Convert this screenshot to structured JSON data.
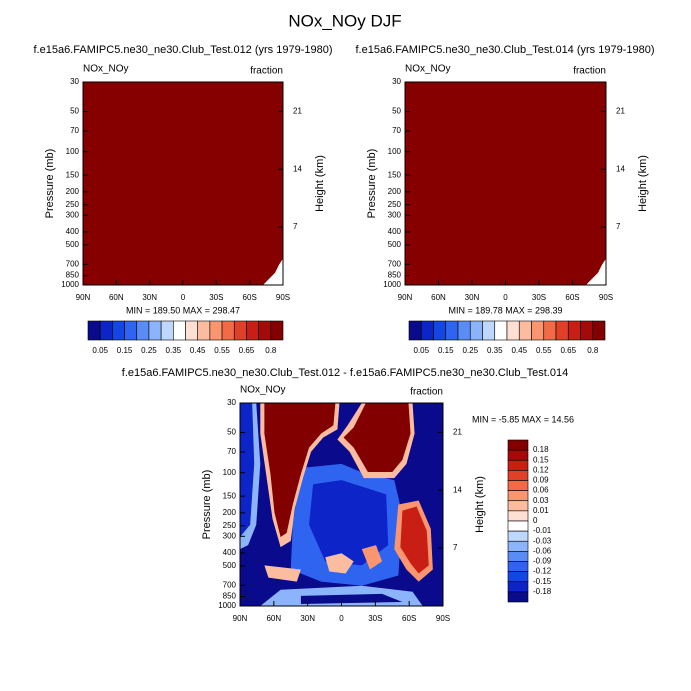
{
  "title": "NOx_NOy DJF",
  "chart_data": [
    {
      "type": "contour",
      "title": "f.e15a6.FAMIPC5.ne30_ne30.Club_Test.012 (yrs 1979-1980)",
      "left_label": "NOx_NOy",
      "right_label": "fraction",
      "ylabel": "Pressure (mb)",
      "y2label": "Height (km)",
      "stats": "MIN = 189.50  MAX = 298.47",
      "xlim": [
        90,
        -90
      ],
      "xticks": [
        {
          "value": 90,
          "label": "90N"
        },
        {
          "value": 60,
          "label": "60N"
        },
        {
          "value": 30,
          "label": "30N"
        },
        0,
        {
          "value": -30,
          "label": "30S"
        },
        {
          "value": -60,
          "label": "60S"
        },
        {
          "value": -90,
          "label": "90S"
        }
      ],
      "ylim": [
        30,
        1000
      ],
      "y_log": true,
      "y_reversed": true,
      "yticks": [
        30,
        50,
        70,
        100,
        150,
        200,
        250,
        300,
        400,
        500,
        700,
        850,
        1000
      ],
      "y2lim": [
        0,
        24.55
      ],
      "y2ticks": [
        7,
        14,
        21
      ],
      "colorbar": {
        "orientation": "horizontal",
        "colors": [
          "#0a0a8c",
          "#0d24c8",
          "#1446e6",
          "#2e64f0",
          "#5a8cf5",
          "#8cb4fa",
          "#bed7fd",
          "#ffffff",
          "#fde0d2",
          "#fcbca0",
          "#f99670",
          "#f26a46",
          "#e04028",
          "#c81e14",
          "#a50a0a",
          "#820000"
        ],
        "labels": [
          0.05,
          0.15,
          0.25,
          0.35,
          0.45,
          0.55,
          0.65,
          0.8
        ]
      }
    },
    {
      "type": "contour",
      "title": "f.e15a6.FAMIPC5.ne30_ne30.Club_Test.014 (yrs 1979-1980)",
      "left_label": "NOx_NOy",
      "right_label": "fraction",
      "ylabel": "Pressure (mb)",
      "y2label": "Height (km)",
      "stats": "MIN = 189.78  MAX = 298.39",
      "xlim": [
        90,
        -90
      ],
      "xticks": [
        {
          "value": 90,
          "label": "90N"
        },
        {
          "value": 60,
          "label": "60N"
        },
        {
          "value": 30,
          "label": "30N"
        },
        0,
        {
          "value": -30,
          "label": "30S"
        },
        {
          "value": -60,
          "label": "60S"
        },
        {
          "value": -90,
          "label": "90S"
        }
      ],
      "ylim": [
        30,
        1000
      ],
      "y_log": true,
      "y_reversed": true,
      "yticks": [
        30,
        50,
        70,
        100,
        150,
        200,
        250,
        300,
        400,
        500,
        700,
        850,
        1000
      ],
      "y2lim": [
        0,
        24.55
      ],
      "y2ticks": [
        7,
        14,
        21
      ],
      "colorbar": {
        "orientation": "horizontal",
        "colors": [
          "#0a0a8c",
          "#0d24c8",
          "#1446e6",
          "#2e64f0",
          "#5a8cf5",
          "#8cb4fa",
          "#bed7fd",
          "#ffffff",
          "#fde0d2",
          "#fcbca0",
          "#f99670",
          "#f26a46",
          "#e04028",
          "#c81e14",
          "#a50a0a",
          "#820000"
        ],
        "labels": [
          0.05,
          0.15,
          0.25,
          0.35,
          0.45,
          0.55,
          0.65,
          0.8
        ]
      }
    },
    {
      "type": "contour",
      "title": "f.e15a6.FAMIPC5.ne30_ne30.Club_Test.012 - f.e15a6.FAMIPC5.ne30_ne30.Club_Test.014",
      "left_label": "NOx_NOy",
      "right_label": "fraction",
      "ylabel": "Pressure (mb)",
      "y2label": "Height (km)",
      "stats": "MIN = -5.85  MAX = 14.56",
      "xlim": [
        90,
        -90
      ],
      "xticks": [
        {
          "value": 90,
          "label": "90N"
        },
        {
          "value": 60,
          "label": "60N"
        },
        {
          "value": 30,
          "label": "30N"
        },
        0,
        {
          "value": -30,
          "label": "30S"
        },
        {
          "value": -60,
          "label": "60S"
        },
        {
          "value": -90,
          "label": "90S"
        }
      ],
      "ylim": [
        30,
        1000
      ],
      "y_log": true,
      "y_reversed": true,
      "yticks": [
        30,
        50,
        70,
        100,
        150,
        200,
        250,
        300,
        400,
        500,
        700,
        850,
        1000
      ],
      "y2lim": [
        0,
        24.55
      ],
      "y2ticks": [
        7,
        14,
        21
      ],
      "colorbar": {
        "orientation": "vertical",
        "colors": [
          "#820000",
          "#a50a0a",
          "#c81e14",
          "#e04028",
          "#f26a46",
          "#f99670",
          "#fcbca0",
          "#fde0d2",
          "#ffffff",
          "#bed7fd",
          "#8cb4fa",
          "#5a8cf5",
          "#2e64f0",
          "#1446e6",
          "#0d24c8",
          "#0a0a8c"
        ],
        "labels": [
          0.18,
          0.15,
          0.12,
          0.09,
          0.06,
          0.03,
          0.01,
          0,
          -0.01,
          -0.03,
          -0.06,
          -0.09,
          -0.12,
          -0.15,
          -0.18
        ]
      }
    }
  ]
}
